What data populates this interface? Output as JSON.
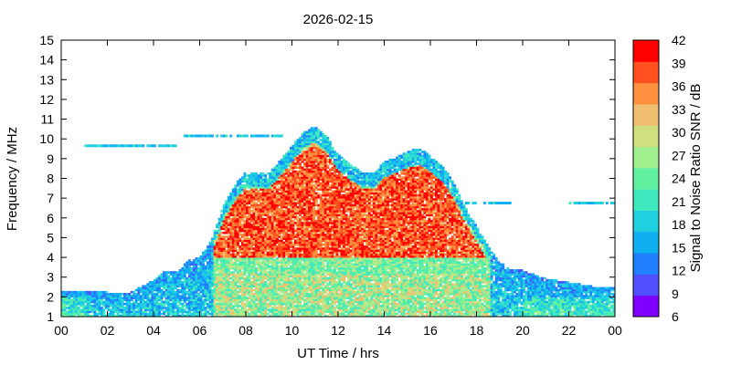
{
  "chart_data": {
    "type": "heatmap",
    "title": "2026-02-15",
    "xlabel": "UT Time / hrs",
    "ylabel": "Frequency / MHz",
    "colorbar_label": "Signal to Noise Ratio SNR / dB",
    "xlim": [
      0,
      24
    ],
    "ylim": [
      1,
      15
    ],
    "x_ticks": [
      "00",
      "02",
      "04",
      "06",
      "08",
      "10",
      "12",
      "14",
      "16",
      "18",
      "20",
      "22",
      "00"
    ],
    "y_ticks": [
      "1",
      "2",
      "3",
      "4",
      "5",
      "6",
      "7",
      "8",
      "9",
      "10",
      "11",
      "12",
      "13",
      "14",
      "15"
    ],
    "colorbar_range": [
      6,
      42
    ],
    "colorbar_ticks": [
      "6",
      "9",
      "12",
      "15",
      "18",
      "21",
      "24",
      "27",
      "30",
      "33",
      "36",
      "39",
      "42"
    ],
    "colorbar_colors": [
      "#8000ff",
      "#5050ff",
      "#2080ff",
      "#10b0f0",
      "#20d0e0",
      "#40e8c0",
      "#60f0a0",
      "#a0f090",
      "#d0e080",
      "#f0c070",
      "#ff9040",
      "#ff5020",
      "#ff0000"
    ],
    "envelope": {
      "description": "approximate upper frequency (MHz) of observed returns vs UT hour",
      "hours": [
        0,
        1,
        2,
        3,
        4,
        4.5,
        5,
        5.5,
        6,
        6.5,
        7,
        7.5,
        8,
        9,
        10,
        10.5,
        11,
        11.5,
        12,
        12.5,
        13,
        13.5,
        14,
        15,
        15.5,
        16,
        16.5,
        17,
        17.5,
        18,
        18.5,
        19,
        19.5,
        20,
        21,
        22,
        23,
        24
      ],
      "fmax": [
        2.3,
        2.3,
        2.2,
        2.2,
        2.8,
        3.3,
        3.2,
        3.8,
        4.0,
        4.8,
        6.5,
        7.6,
        8.3,
        8.2,
        9.6,
        10.3,
        10.6,
        10.1,
        9.2,
        8.7,
        8.3,
        8.2,
        8.8,
        9.3,
        9.5,
        9.1,
        8.6,
        7.8,
        6.5,
        5.5,
        4.5,
        3.7,
        3.4,
        3.3,
        2.9,
        2.7,
        2.5,
        2.4
      ]
    },
    "sporadic_traces": [
      {
        "hours": [
          1.0,
          5.0
        ],
        "freq": 9.6
      },
      {
        "hours": [
          5.3,
          9.5
        ],
        "freq": 10.1
      },
      {
        "hours": [
          17.5,
          19.5
        ],
        "freq": 6.7
      },
      {
        "hours": [
          22.0,
          24.0
        ],
        "freq": 6.7
      }
    ]
  }
}
